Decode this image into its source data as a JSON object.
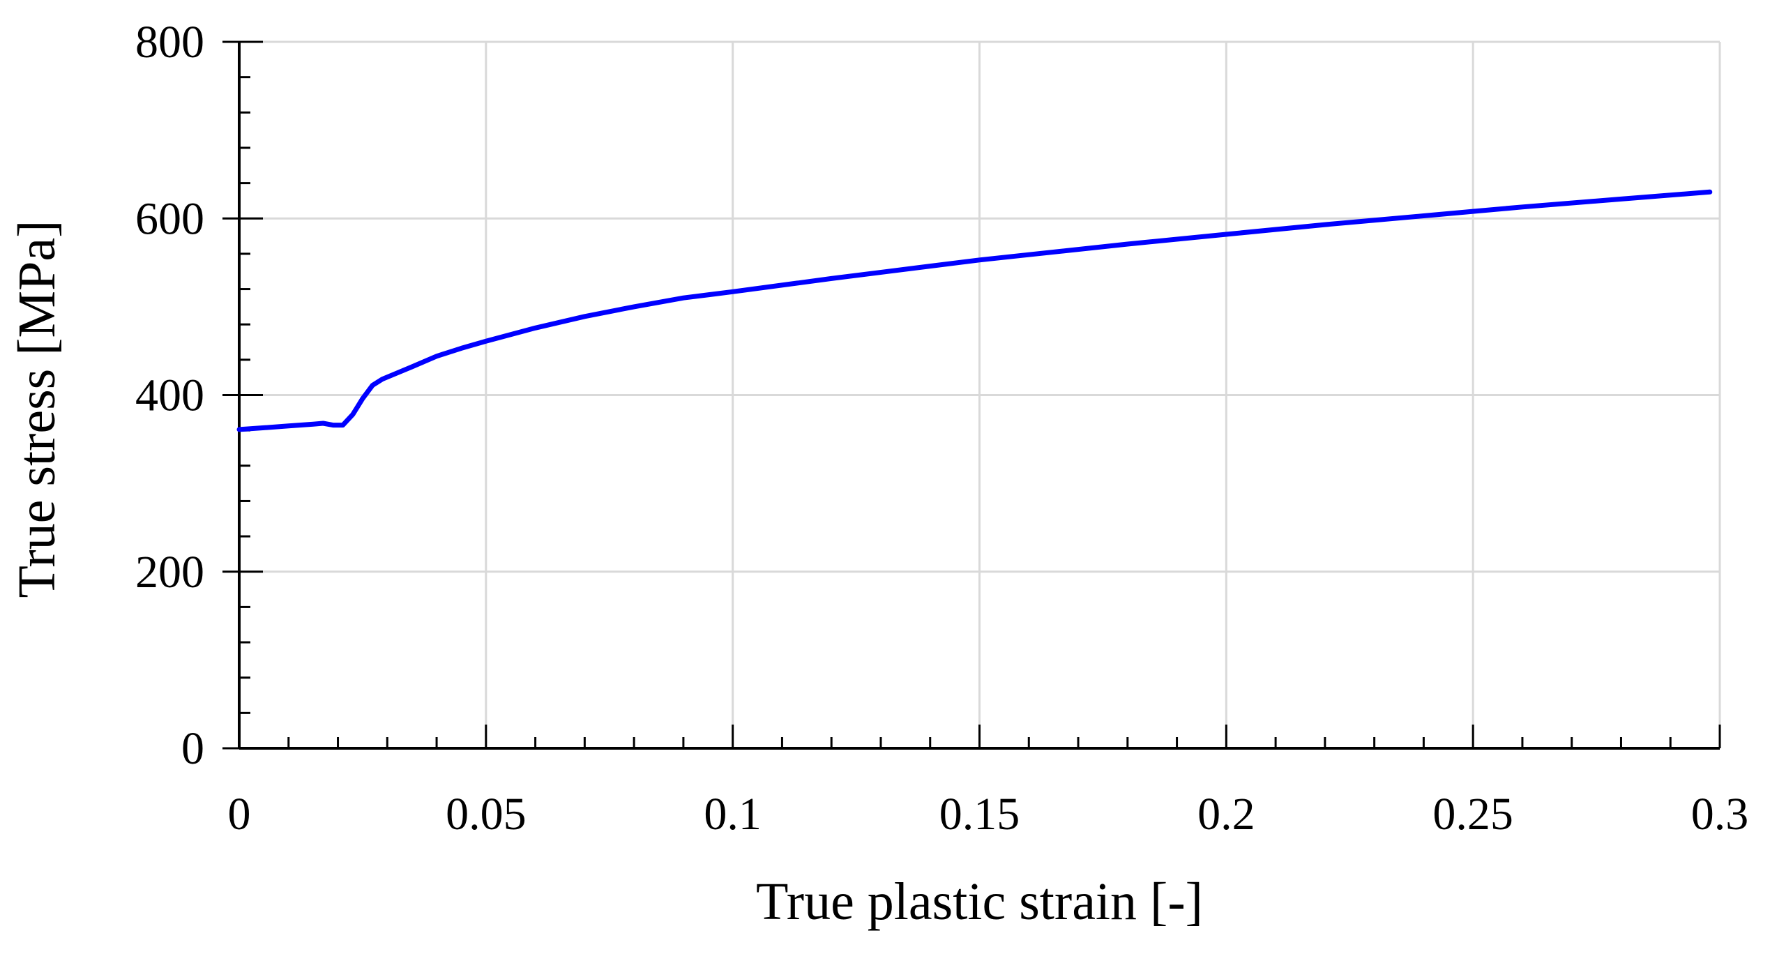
{
  "chart_data": {
    "type": "line",
    "title": "",
    "xlabel": "True plastic strain [-]",
    "ylabel": "True stress [MPa]",
    "xlim": [
      0,
      0.3
    ],
    "ylim": [
      0,
      800
    ],
    "x_ticks": [
      0,
      0.05,
      0.1,
      0.15,
      0.2,
      0.25,
      0.3
    ],
    "x_tick_labels": [
      "0",
      "0.05",
      "0.1",
      "0.15",
      "0.2",
      "0.25",
      "0.3"
    ],
    "y_ticks": [
      0,
      200,
      400,
      600,
      800
    ],
    "y_tick_labels": [
      "0",
      "200",
      "400",
      "600",
      "800"
    ],
    "x_minor_step": 0.01,
    "y_minor_step": 40,
    "grid": true,
    "legend": "none",
    "series": [
      {
        "color": "#0000ff",
        "x": [
          0,
          0.005,
          0.01,
          0.015,
          0.017,
          0.019,
          0.021,
          0.023,
          0.025,
          0.027,
          0.029,
          0.032,
          0.035,
          0.04,
          0.045,
          0.05,
          0.06,
          0.07,
          0.08,
          0.09,
          0.1,
          0.12,
          0.14,
          0.15,
          0.16,
          0.18,
          0.2,
          0.22,
          0.24,
          0.25,
          0.26,
          0.28,
          0.298
        ],
        "y": [
          361,
          363,
          365,
          367,
          368,
          366,
          366,
          378,
          396,
          411,
          418,
          425,
          432,
          444,
          453,
          461,
          476,
          489,
          500,
          510,
          517,
          532,
          546,
          553,
          559,
          571,
          582,
          593,
          603,
          608,
          613,
          622,
          630
        ]
      }
    ]
  }
}
